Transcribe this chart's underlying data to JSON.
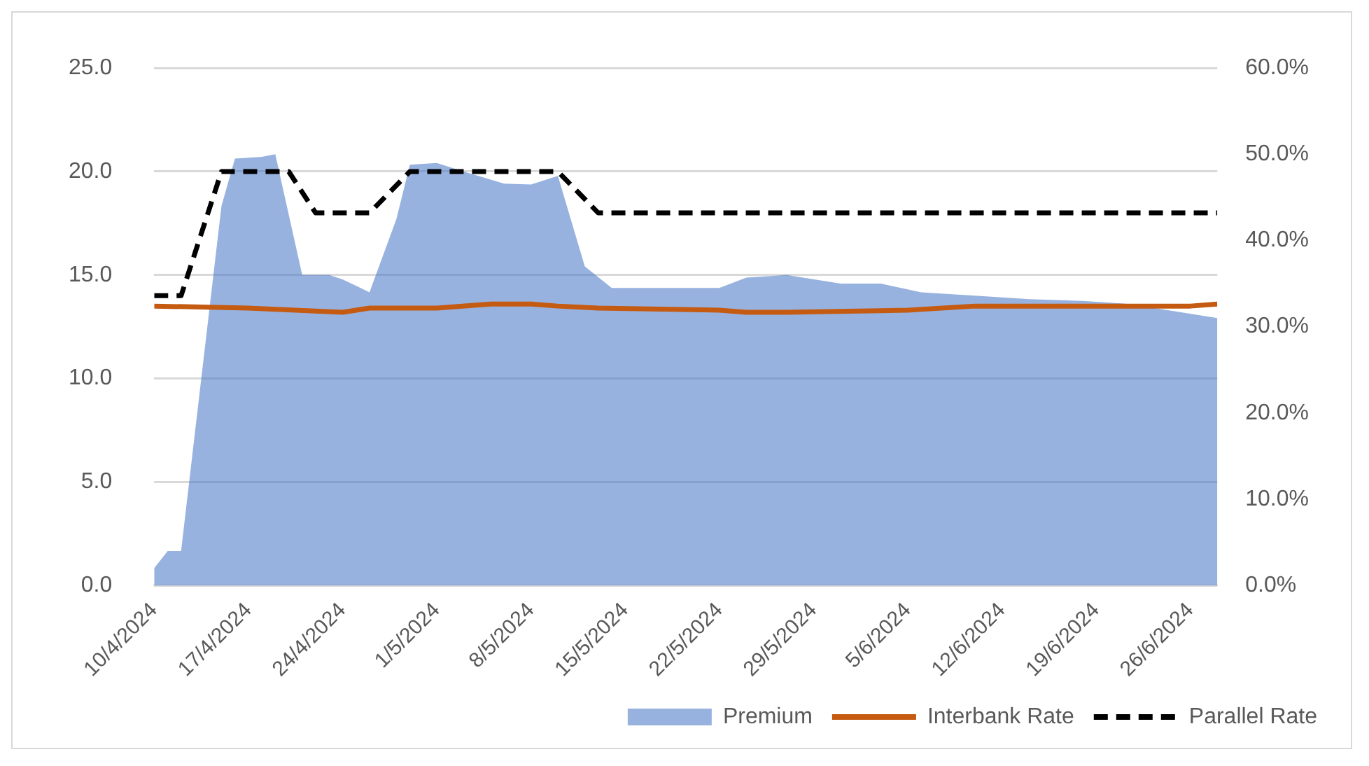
{
  "chart_data": {
    "type": "line",
    "xlim": [
      "2024-04-10",
      "2024-06-28"
    ],
    "xticks": [
      {
        "value": "2024-04-10",
        "label": "10/4/2024"
      },
      {
        "value": "2024-04-17",
        "label": "17/4/2024"
      },
      {
        "value": "2024-04-24",
        "label": "24/4/2024"
      },
      {
        "value": "2024-05-01",
        "label": "1/5/2024"
      },
      {
        "value": "2024-05-08",
        "label": "8/5/2024"
      },
      {
        "value": "2024-05-15",
        "label": "15/5/2024"
      },
      {
        "value": "2024-05-22",
        "label": "22/5/2024"
      },
      {
        "value": "2024-05-29",
        "label": "29/5/2024"
      },
      {
        "value": "2024-06-05",
        "label": "5/6/2024"
      },
      {
        "value": "2024-06-12",
        "label": "12/6/2024"
      },
      {
        "value": "2024-06-19",
        "label": "19/6/2024"
      },
      {
        "value": "2024-06-26",
        "label": "26/6/2024"
      }
    ],
    "ylim": [
      0,
      25
    ],
    "yticks": [
      {
        "value": 0,
        "label": "0.0"
      },
      {
        "value": 5,
        "label": "5.0"
      },
      {
        "value": 10,
        "label": "10.0"
      },
      {
        "value": 15,
        "label": "15.0"
      },
      {
        "value": 20,
        "label": "20.0"
      },
      {
        "value": 25,
        "label": "25.0"
      }
    ],
    "y2lim": [
      0,
      60
    ],
    "y2ticks": [
      {
        "value": 0,
        "label": "0.0%"
      },
      {
        "value": 10,
        "label": "10.0%"
      },
      {
        "value": 20,
        "label": "20.0%"
      },
      {
        "value": 30,
        "label": "30.0%"
      },
      {
        "value": 40,
        "label": "40.0%"
      },
      {
        "value": 50,
        "label": "50.0%"
      },
      {
        "value": 60,
        "label": "60.0%"
      }
    ],
    "grid": "y",
    "legend": "bottom right",
    "series": [
      {
        "name": "Premium",
        "type": "area",
        "axis": "y2",
        "color": "#4472c4",
        "x": [
          "2024-04-10",
          "2024-04-11",
          "2024-04-12",
          "2024-04-15",
          "2024-04-16",
          "2024-04-18",
          "2024-04-19",
          "2024-04-21",
          "2024-04-23",
          "2024-04-24",
          "2024-04-26",
          "2024-04-28",
          "2024-04-29",
          "2024-05-01",
          "2024-05-03",
          "2024-05-06",
          "2024-05-08",
          "2024-05-10",
          "2024-05-12",
          "2024-05-14",
          "2024-05-22",
          "2024-05-24",
          "2024-05-27",
          "2024-05-31",
          "2024-06-03",
          "2024-06-06",
          "2024-06-10",
          "2024-06-14",
          "2024-06-18",
          "2024-06-21",
          "2024-06-24",
          "2024-06-28"
        ],
        "values": [
          2,
          4,
          4,
          44,
          49.5,
          49.7,
          50,
          36,
          36,
          35.5,
          34,
          42.5,
          48.8,
          49,
          48,
          46.6,
          46.5,
          47.5,
          37,
          34.5,
          34.5,
          35.7,
          36,
          35,
          35,
          34,
          33.6,
          33.2,
          33,
          32.7,
          32,
          31
        ]
      },
      {
        "name": "Interbank Rate",
        "type": "line",
        "axis": "y",
        "color": "#c55a11",
        "line_style": "solid",
        "x": [
          "2024-04-10",
          "2024-04-17",
          "2024-04-24",
          "2024-04-26",
          "2024-05-01",
          "2024-05-05",
          "2024-05-08",
          "2024-05-10",
          "2024-05-13",
          "2024-05-22",
          "2024-05-24",
          "2024-05-27",
          "2024-06-05",
          "2024-06-10",
          "2024-06-26",
          "2024-06-28"
        ],
        "values": [
          13.5,
          13.4,
          13.2,
          13.4,
          13.4,
          13.6,
          13.6,
          13.5,
          13.4,
          13.3,
          13.2,
          13.2,
          13.3,
          13.5,
          13.5,
          13.6
        ]
      },
      {
        "name": "Parallel Rate",
        "type": "line",
        "axis": "y",
        "color": "#000000",
        "line_style": "dashed",
        "x": [
          "2024-04-10",
          "2024-04-12",
          "2024-04-15",
          "2024-04-20",
          "2024-04-22",
          "2024-04-26",
          "2024-04-29",
          "2024-05-10",
          "2024-05-13",
          "2024-06-28"
        ],
        "values": [
          14,
          14,
          20,
          20,
          18,
          18,
          20,
          20,
          18,
          18
        ]
      }
    ]
  }
}
